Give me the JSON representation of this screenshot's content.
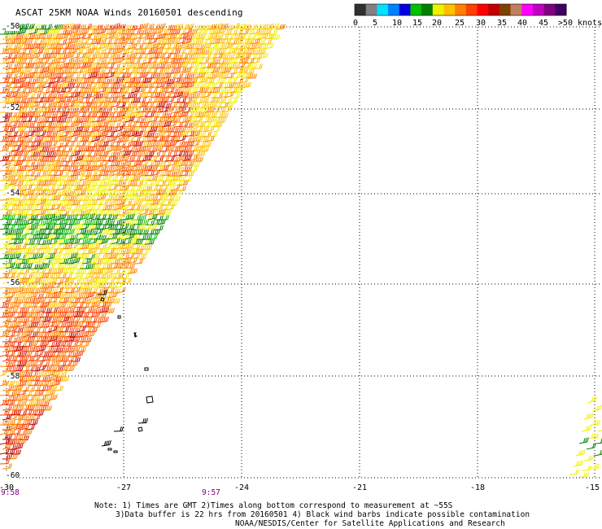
{
  "title": "ASCAT 25KM NOAA Winds 20160501 descending",
  "colorbar": {
    "colors": [
      "#303030",
      "#808080",
      "#00e0ff",
      "#0080ff",
      "#0000e0",
      "#00c000",
      "#008000",
      "#f0f000",
      "#ffc000",
      "#ff8000",
      "#ff4000",
      "#ff0000",
      "#c00000",
      "#804000",
      "#c08060",
      "#ff00ff",
      "#c000c0",
      "#800080",
      "#400060"
    ],
    "labels": [
      "0",
      "5",
      "10",
      "15",
      "20",
      "25",
      "30",
      "35",
      "40",
      "45",
      ">50 knots"
    ]
  },
  "axes": {
    "x_labels": [
      "-30",
      "-27",
      "-24",
      "-21",
      "-18",
      "-15"
    ],
    "y_labels": [
      "-50",
      "-52",
      "-54",
      "-56",
      "-58",
      "-60"
    ]
  },
  "times": [
    "9:58",
    "9:57"
  ],
  "notes": [
    "Note: 1) Times are GMT 2)Times along bottom correspond to measurement at ~55S",
    "3)Data buffer is 22 hrs from 20160501 4) Black wind barbs indicate possible contamination",
    "NOAA/NESDIS/Center for Satellite Applications and Research"
  ]
}
